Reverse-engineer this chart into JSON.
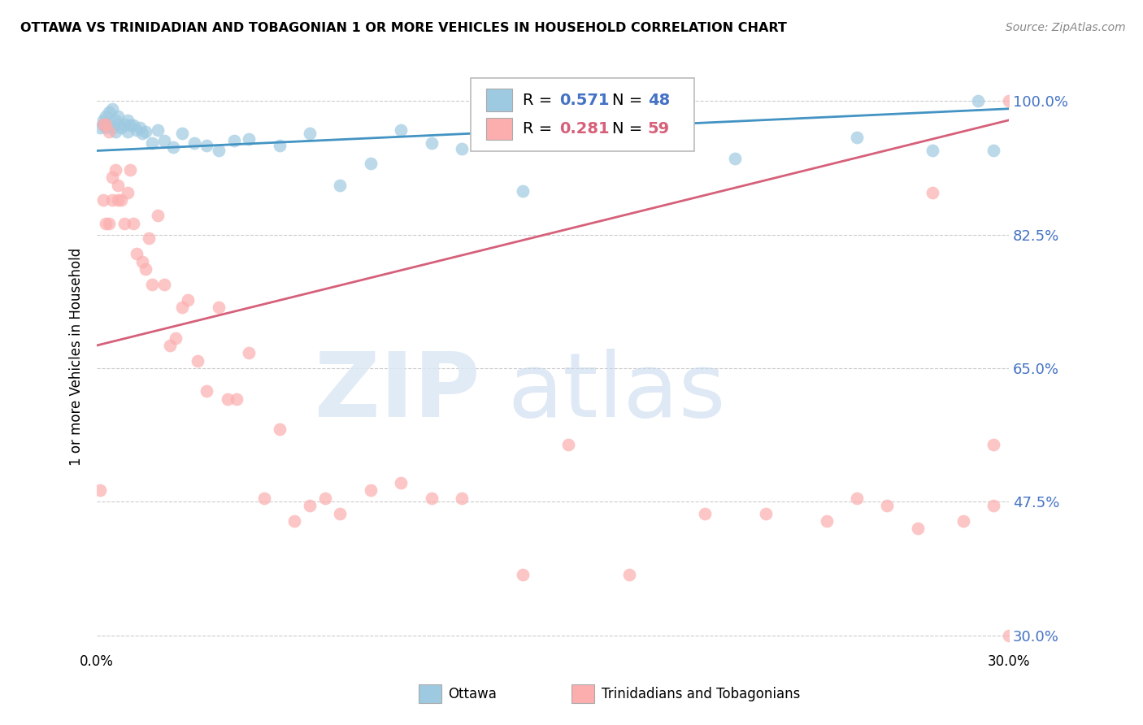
{
  "title": "OTTAWA VS TRINIDADIAN AND TOBAGONIAN 1 OR MORE VEHICLES IN HOUSEHOLD CORRELATION CHART",
  "source": "Source: ZipAtlas.com",
  "ylabel": "1 or more Vehicles in Household",
  "ytick_labels": [
    "100.0%",
    "82.5%",
    "65.0%",
    "47.5%",
    "30.0%"
  ],
  "ytick_values": [
    1.0,
    0.825,
    0.65,
    0.475,
    0.3
  ],
  "xmin": 0.0,
  "xmax": 0.3,
  "ymin": 0.28,
  "ymax": 1.05,
  "blue_color": "#9ecae1",
  "pink_color": "#fcaeae",
  "blue_line_color": "#4393c3",
  "pink_line_color": "#d6607a",
  "blue_x": [
    0.001,
    0.002,
    0.002,
    0.003,
    0.003,
    0.004,
    0.004,
    0.005,
    0.005,
    0.006,
    0.006,
    0.007,
    0.007,
    0.008,
    0.009,
    0.01,
    0.01,
    0.011,
    0.012,
    0.013,
    0.014,
    0.015,
    0.016,
    0.018,
    0.02,
    0.022,
    0.025,
    0.028,
    0.032,
    0.036,
    0.04,
    0.045,
    0.05,
    0.06,
    0.07,
    0.08,
    0.09,
    0.1,
    0.11,
    0.12,
    0.14,
    0.16,
    0.185,
    0.21,
    0.25,
    0.275,
    0.29,
    0.295
  ],
  "blue_y": [
    0.965,
    0.97,
    0.975,
    0.965,
    0.98,
    0.97,
    0.985,
    0.965,
    0.99,
    0.96,
    0.975,
    0.97,
    0.98,
    0.965,
    0.97,
    0.96,
    0.975,
    0.968,
    0.968,
    0.962,
    0.965,
    0.958,
    0.96,
    0.945,
    0.962,
    0.948,
    0.94,
    0.958,
    0.945,
    0.942,
    0.935,
    0.948,
    0.95,
    0.942,
    0.958,
    0.89,
    0.918,
    0.962,
    0.945,
    0.938,
    0.882,
    0.945,
    1.0,
    0.925,
    0.952,
    0.935,
    1.0,
    0.935
  ],
  "pink_x": [
    0.001,
    0.002,
    0.002,
    0.003,
    0.003,
    0.004,
    0.004,
    0.005,
    0.005,
    0.006,
    0.007,
    0.007,
    0.008,
    0.009,
    0.01,
    0.011,
    0.012,
    0.013,
    0.015,
    0.016,
    0.017,
    0.018,
    0.02,
    0.022,
    0.024,
    0.026,
    0.028,
    0.03,
    0.033,
    0.036,
    0.04,
    0.043,
    0.046,
    0.05,
    0.055,
    0.06,
    0.065,
    0.07,
    0.075,
    0.08,
    0.09,
    0.1,
    0.11,
    0.12,
    0.14,
    0.155,
    0.175,
    0.2,
    0.22,
    0.25,
    0.27,
    0.285,
    0.295,
    0.3,
    0.275,
    0.26,
    0.24,
    0.295,
    0.3
  ],
  "pink_y": [
    0.49,
    0.87,
    0.97,
    0.84,
    0.97,
    0.84,
    0.96,
    0.87,
    0.9,
    0.91,
    0.87,
    0.89,
    0.87,
    0.84,
    0.88,
    0.91,
    0.84,
    0.8,
    0.79,
    0.78,
    0.82,
    0.76,
    0.85,
    0.76,
    0.68,
    0.69,
    0.73,
    0.74,
    0.66,
    0.62,
    0.73,
    0.61,
    0.61,
    0.67,
    0.48,
    0.57,
    0.45,
    0.47,
    0.48,
    0.46,
    0.49,
    0.5,
    0.48,
    0.48,
    0.38,
    0.55,
    0.38,
    0.46,
    0.46,
    0.48,
    0.44,
    0.45,
    0.47,
    1.0,
    0.88,
    0.47,
    0.45,
    0.55,
    0.3
  ],
  "blue_R": 0.571,
  "blue_N": 48,
  "pink_R": 0.281,
  "pink_N": 59
}
